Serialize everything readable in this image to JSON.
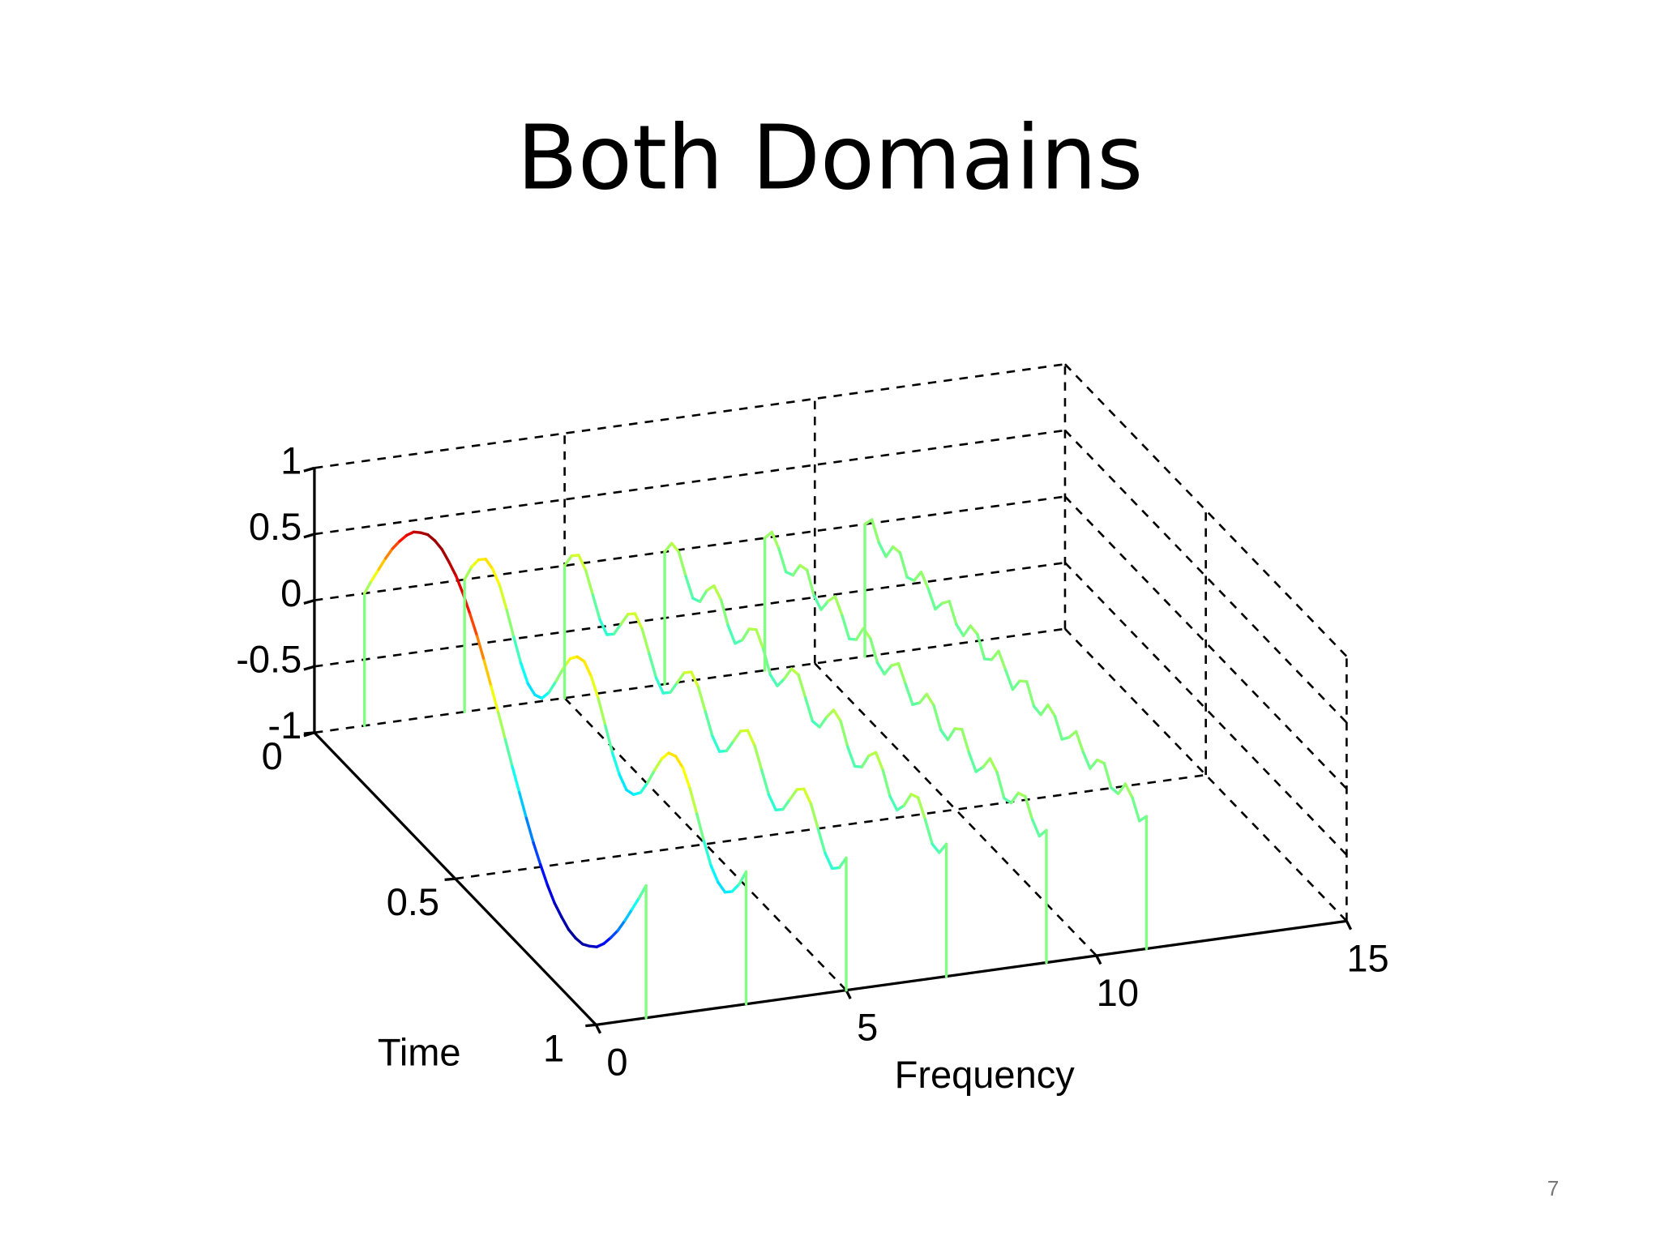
{
  "slide": {
    "title": "Both Domains",
    "page_number": "7"
  },
  "chart_data": {
    "type": "waterfall3d",
    "xlabel": "Frequency",
    "ylabel": "Time",
    "xlim": [
      0,
      15
    ],
    "xticks": [
      0,
      5,
      10,
      15
    ],
    "ylim": [
      0,
      1
    ],
    "yticks": [
      0,
      0.5,
      1
    ],
    "zlim": [
      -1,
      1
    ],
    "zticks": [
      -1,
      -0.5,
      0,
      0.5,
      1
    ],
    "grid": true,
    "colormap": "jet",
    "time": [
      0,
      0.025,
      0.05,
      0.075,
      0.1,
      0.125,
      0.15,
      0.175,
      0.2,
      0.225,
      0.25,
      0.275,
      0.3,
      0.325,
      0.35,
      0.375,
      0.4,
      0.425,
      0.45,
      0.475,
      0.5,
      0.525,
      0.55,
      0.575,
      0.6,
      0.625,
      0.65,
      0.675,
      0.7,
      0.725,
      0.75,
      0.775,
      0.8,
      0.825,
      0.85,
      0.875,
      0.9,
      0.925,
      0.95,
      0.975,
      1
    ],
    "series": [
      {
        "frequency": 1,
        "values": [
          0,
          0.15,
          0.29,
          0.43,
          0.56,
          0.67,
          0.77,
          0.85,
          0.9,
          0.94,
          0.95,
          0.94,
          0.9,
          0.85,
          0.77,
          0.67,
          0.56,
          0.43,
          0.29,
          0.15,
          0,
          -0.15,
          -0.29,
          -0.43,
          -0.56,
          -0.67,
          -0.77,
          -0.85,
          -0.9,
          -0.94,
          -0.95,
          -0.94,
          -0.9,
          -0.85,
          -0.77,
          -0.67,
          -0.56,
          -0.43,
          -0.29,
          -0.15,
          0
        ]
      },
      {
        "frequency": 3,
        "values": [
          0,
          0.15,
          0.26,
          0.32,
          0.3,
          0.23,
          0.1,
          -0.05,
          -0.19,
          -0.29,
          -0.32,
          -0.29,
          -0.19,
          -0.05,
          0.1,
          0.23,
          0.3,
          0.32,
          0.26,
          0.15,
          0,
          -0.15,
          -0.26,
          -0.32,
          -0.3,
          -0.23,
          -0.1,
          0.05,
          0.19,
          0.29,
          0.32,
          0.29,
          0.19,
          0.05,
          -0.1,
          -0.23,
          -0.3,
          -0.32,
          -0.26,
          -0.15,
          0
        ]
      },
      {
        "frequency": 5,
        "values": [
          0,
          0.13,
          0.19,
          0.13,
          0,
          -0.13,
          -0.19,
          -0.13,
          0,
          0.13,
          0.19,
          0.13,
          0,
          -0.13,
          -0.19,
          -0.13,
          0,
          0.13,
          0.19,
          0.13,
          0,
          -0.13,
          -0.19,
          -0.13,
          0,
          0.13,
          0.19,
          0.13,
          0,
          -0.13,
          -0.19,
          -0.13,
          0,
          0.13,
          0.19,
          0.13,
          0,
          -0.13,
          -0.19,
          -0.13,
          0
        ]
      },
      {
        "frequency": 7,
        "values": [
          0,
          0.12,
          0.11,
          -0.02,
          -0.13,
          -0.1,
          0.04,
          0.13,
          0.08,
          -0.06,
          -0.14,
          -0.06,
          0.08,
          0.13,
          0.04,
          -0.1,
          -0.13,
          -0.02,
          0.11,
          0.12,
          0,
          -0.12,
          -0.11,
          0.02,
          0.13,
          0.1,
          -0.04,
          -0.13,
          -0.08,
          0.06,
          0.14,
          0.06,
          -0.08,
          -0.13,
          -0.04,
          0.1,
          0.13,
          0.02,
          -0.11,
          -0.12,
          0
        ]
      },
      {
        "frequency": 9,
        "values": [
          0,
          0.1,
          0.03,
          -0.09,
          -0.06,
          0.07,
          0.09,
          -0.05,
          -0.1,
          0.02,
          0.11,
          0.02,
          -0.1,
          -0.05,
          0.09,
          0.07,
          -0.06,
          -0.09,
          0.03,
          0.1,
          0,
          -0.1,
          -0.03,
          0.09,
          0.06,
          -0.07,
          -0.09,
          0.05,
          0.1,
          -0.02,
          -0.11,
          -0.02,
          0.1,
          0.05,
          -0.09,
          -0.07,
          0.06,
          0.09,
          -0.03,
          -0.1,
          0
        ]
      },
      {
        "frequency": 11,
        "values": [
          0,
          0.09,
          -0.03,
          -0.08,
          0.05,
          0.06,
          -0.07,
          -0.04,
          0.08,
          0.01,
          -0.09,
          0.01,
          0.08,
          -0.04,
          -0.07,
          0.06,
          0.05,
          -0.08,
          -0.03,
          0.09,
          0,
          -0.09,
          0.03,
          0.08,
          -0.05,
          -0.06,
          0.07,
          0.04,
          -0.08,
          -0.01,
          0.09,
          -0.01,
          -0.08,
          0.04,
          0.07,
          -0.06,
          -0.05,
          0.08,
          0.03,
          -0.09,
          0
        ]
      }
    ]
  }
}
